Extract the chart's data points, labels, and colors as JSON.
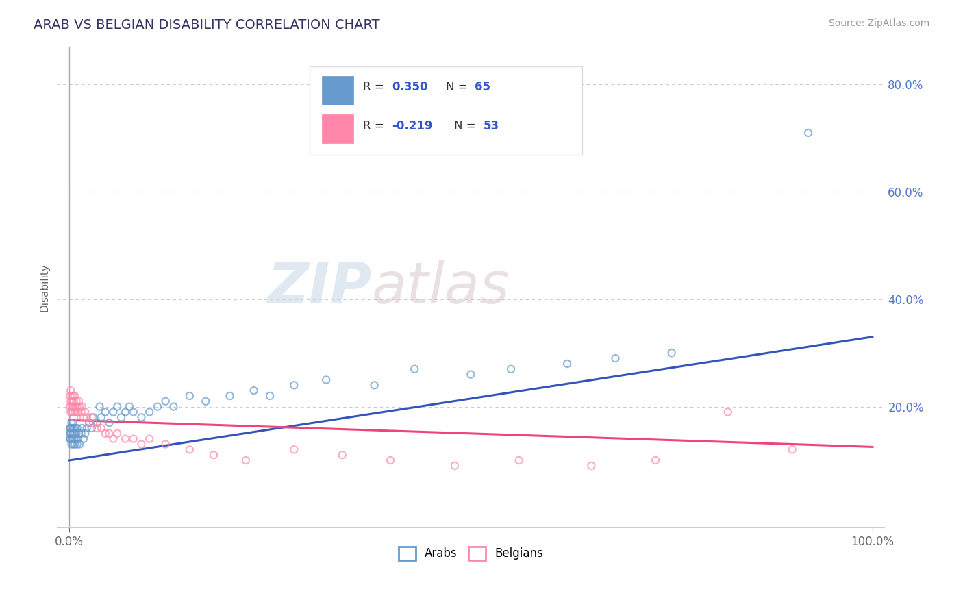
{
  "title": "ARAB VS BELGIAN DISABILITY CORRELATION CHART",
  "source": "Source: ZipAtlas.com",
  "ylabel": "Disability",
  "arab_color": "#6699CC",
  "arab_line_color": "#3355BB",
  "belgian_color": "#FF88AA",
  "belgian_line_color": "#EE4477",
  "arab_R": "0.350",
  "arab_N": "65",
  "belgian_R": "-0.219",
  "belgian_N": "53",
  "watermark_zip": "ZIP",
  "watermark_atlas": "atlas",
  "background_color": "#ffffff",
  "grid_color": "#cccccc",
  "ytick_positions": [
    0.2,
    0.4,
    0.6,
    0.8
  ],
  "ytick_labels": [
    "20.0%",
    "40.0%",
    "60.0%",
    "80.0%"
  ],
  "arab_scatter_x": [
    0.001,
    0.001,
    0.001,
    0.002,
    0.002,
    0.002,
    0.003,
    0.003,
    0.003,
    0.004,
    0.004,
    0.005,
    0.005,
    0.005,
    0.006,
    0.006,
    0.007,
    0.007,
    0.008,
    0.008,
    0.009,
    0.01,
    0.01,
    0.011,
    0.012,
    0.013,
    0.015,
    0.016,
    0.018,
    0.02,
    0.022,
    0.025,
    0.028,
    0.03,
    0.035,
    0.038,
    0.04,
    0.045,
    0.05,
    0.055,
    0.06,
    0.065,
    0.07,
    0.075,
    0.08,
    0.09,
    0.1,
    0.11,
    0.12,
    0.13,
    0.15,
    0.17,
    0.2,
    0.23,
    0.25,
    0.28,
    0.32,
    0.38,
    0.43,
    0.5,
    0.55,
    0.62,
    0.68,
    0.75,
    0.92
  ],
  "arab_scatter_y": [
    0.14,
    0.15,
    0.16,
    0.14,
    0.15,
    0.16,
    0.13,
    0.15,
    0.17,
    0.14,
    0.16,
    0.13,
    0.15,
    0.17,
    0.14,
    0.16,
    0.13,
    0.15,
    0.14,
    0.16,
    0.15,
    0.13,
    0.16,
    0.14,
    0.15,
    0.13,
    0.15,
    0.16,
    0.14,
    0.15,
    0.16,
    0.17,
    0.16,
    0.18,
    0.17,
    0.2,
    0.18,
    0.19,
    0.17,
    0.19,
    0.2,
    0.18,
    0.19,
    0.2,
    0.19,
    0.18,
    0.19,
    0.2,
    0.21,
    0.2,
    0.22,
    0.21,
    0.22,
    0.23,
    0.22,
    0.24,
    0.25,
    0.24,
    0.27,
    0.26,
    0.27,
    0.28,
    0.29,
    0.3,
    0.71
  ],
  "belgian_scatter_x": [
    0.001,
    0.001,
    0.002,
    0.002,
    0.002,
    0.003,
    0.003,
    0.004,
    0.004,
    0.005,
    0.005,
    0.006,
    0.006,
    0.007,
    0.007,
    0.008,
    0.009,
    0.009,
    0.01,
    0.011,
    0.012,
    0.013,
    0.015,
    0.016,
    0.018,
    0.02,
    0.022,
    0.025,
    0.028,
    0.03,
    0.035,
    0.04,
    0.045,
    0.05,
    0.055,
    0.06,
    0.07,
    0.08,
    0.09,
    0.1,
    0.12,
    0.15,
    0.18,
    0.22,
    0.28,
    0.34,
    0.4,
    0.48,
    0.56,
    0.65,
    0.73,
    0.82,
    0.9
  ],
  "belgian_scatter_y": [
    0.2,
    0.22,
    0.19,
    0.21,
    0.23,
    0.2,
    0.22,
    0.19,
    0.21,
    0.2,
    0.22,
    0.18,
    0.21,
    0.19,
    0.22,
    0.2,
    0.19,
    0.21,
    0.2,
    0.19,
    0.21,
    0.2,
    0.19,
    0.2,
    0.18,
    0.19,
    0.18,
    0.17,
    0.18,
    0.17,
    0.16,
    0.16,
    0.15,
    0.15,
    0.14,
    0.15,
    0.14,
    0.14,
    0.13,
    0.14,
    0.13,
    0.12,
    0.11,
    0.1,
    0.12,
    0.11,
    0.1,
    0.09,
    0.1,
    0.09,
    0.1,
    0.19,
    0.12
  ]
}
